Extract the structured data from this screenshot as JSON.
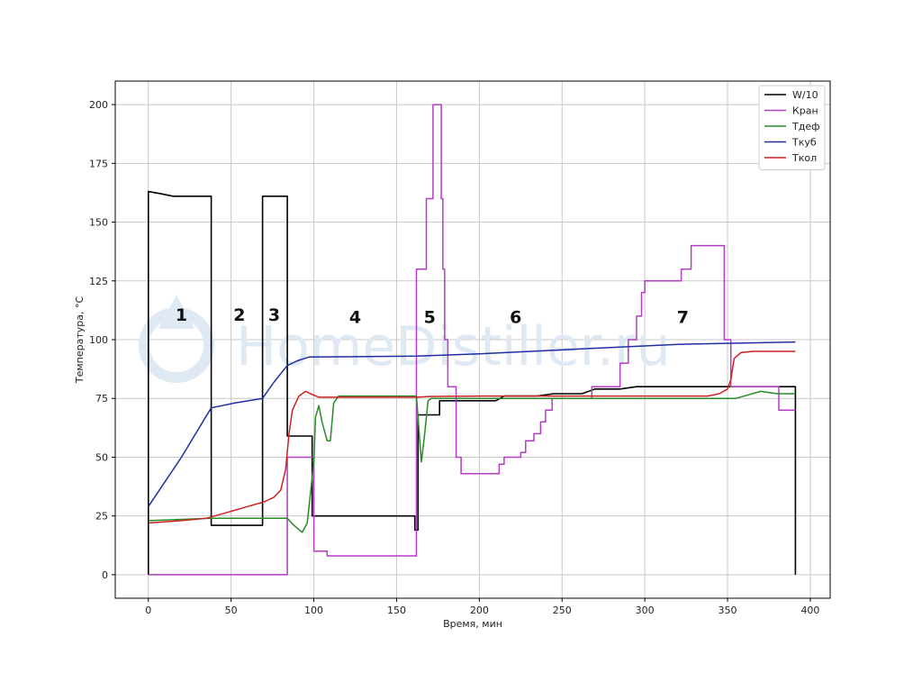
{
  "watermark": "HomeDistiller.ru",
  "chart_data": {
    "type": "line",
    "title": "",
    "xlabel": "Время, мин",
    "ylabel": "Температура, °C",
    "xlim": [
      -20,
      412
    ],
    "ylim": [
      -10,
      210
    ],
    "xticks": [
      0,
      50,
      100,
      150,
      200,
      250,
      300,
      350,
      400
    ],
    "yticks": [
      0,
      25,
      50,
      75,
      100,
      125,
      150,
      175,
      200
    ],
    "grid": true,
    "legend_position": "top-right",
    "phase_labels": [
      {
        "text": "1",
        "x": 20,
        "y": 108
      },
      {
        "text": "2",
        "x": 55,
        "y": 108
      },
      {
        "text": "3",
        "x": 76,
        "y": 108
      },
      {
        "text": "4",
        "x": 125,
        "y": 107
      },
      {
        "text": "5",
        "x": 170,
        "y": 107
      },
      {
        "text": "6",
        "x": 222,
        "y": 107
      },
      {
        "text": "7",
        "x": 323,
        "y": 107
      }
    ],
    "series": [
      {
        "name": "W/10",
        "color": "#000000",
        "points": [
          [
            0,
            0
          ],
          [
            0,
            163
          ],
          [
            8,
            162
          ],
          [
            15,
            161
          ],
          [
            38,
            161
          ],
          [
            38,
            21
          ],
          [
            69,
            21
          ],
          [
            69,
            161
          ],
          [
            84,
            161
          ],
          [
            84,
            59
          ],
          [
            99,
            59
          ],
          [
            99,
            25
          ],
          [
            161,
            25
          ],
          [
            161,
            19
          ],
          [
            163,
            19
          ],
          [
            163,
            68
          ],
          [
            176,
            68
          ],
          [
            176,
            74
          ],
          [
            210,
            74
          ],
          [
            215,
            76
          ],
          [
            235,
            76
          ],
          [
            245,
            77
          ],
          [
            262,
            77
          ],
          [
            270,
            79
          ],
          [
            285,
            79
          ],
          [
            295,
            80
          ],
          [
            391,
            80
          ],
          [
            391,
            0
          ]
        ]
      },
      {
        "name": "Кран",
        "color": "#b43bc5",
        "points": [
          [
            0,
            0
          ],
          [
            84,
            0
          ],
          [
            84,
            50
          ],
          [
            100,
            50
          ],
          [
            100,
            10
          ],
          [
            108,
            10
          ],
          [
            108,
            8
          ],
          [
            162,
            8
          ],
          [
            162,
            130
          ],
          [
            168,
            130
          ],
          [
            168,
            160
          ],
          [
            172,
            160
          ],
          [
            172,
            200
          ],
          [
            177,
            200
          ],
          [
            177,
            160
          ],
          [
            178,
            160
          ],
          [
            178,
            130
          ],
          [
            179,
            130
          ],
          [
            179,
            100
          ],
          [
            181,
            100
          ],
          [
            181,
            80
          ],
          [
            186,
            80
          ],
          [
            186,
            50
          ],
          [
            189,
            50
          ],
          [
            189,
            43
          ],
          [
            212,
            43
          ],
          [
            212,
            47
          ],
          [
            215,
            47
          ],
          [
            215,
            50
          ],
          [
            225,
            50
          ],
          [
            225,
            52
          ],
          [
            228,
            52
          ],
          [
            228,
            57
          ],
          [
            233,
            57
          ],
          [
            233,
            60
          ],
          [
            237,
            60
          ],
          [
            237,
            65
          ],
          [
            240,
            65
          ],
          [
            240,
            70
          ],
          [
            244,
            70
          ],
          [
            244,
            75
          ],
          [
            268,
            75
          ],
          [
            268,
            80
          ],
          [
            285,
            80
          ],
          [
            285,
            90
          ],
          [
            290,
            90
          ],
          [
            290,
            100
          ],
          [
            295,
            100
          ],
          [
            295,
            110
          ],
          [
            298,
            110
          ],
          [
            298,
            120
          ],
          [
            300,
            120
          ],
          [
            300,
            125
          ],
          [
            322,
            125
          ],
          [
            322,
            130
          ],
          [
            328,
            130
          ],
          [
            328,
            140
          ],
          [
            348,
            140
          ],
          [
            348,
            100
          ],
          [
            352,
            100
          ],
          [
            352,
            80
          ],
          [
            381,
            80
          ],
          [
            381,
            70
          ],
          [
            391,
            70
          ]
        ]
      },
      {
        "name": "Tдеф",
        "color": "#2a8a2a",
        "points": [
          [
            0,
            23
          ],
          [
            38,
            24
          ],
          [
            84,
            24
          ],
          [
            88,
            21
          ],
          [
            93,
            18
          ],
          [
            96,
            22
          ],
          [
            100,
            48
          ],
          [
            101,
            67
          ],
          [
            103,
            72
          ],
          [
            105,
            65
          ],
          [
            108,
            57
          ],
          [
            110,
            57
          ],
          [
            112,
            73
          ],
          [
            115,
            76
          ],
          [
            162,
            76
          ],
          [
            165,
            48
          ],
          [
            167,
            60
          ],
          [
            169,
            74
          ],
          [
            171,
            75
          ],
          [
            355,
            75
          ],
          [
            370,
            78
          ],
          [
            380,
            77
          ],
          [
            391,
            77
          ]
        ]
      },
      {
        "name": "Tкуб",
        "color": "#1f2fa3",
        "points": [
          [
            0,
            29
          ],
          [
            20,
            50
          ],
          [
            38,
            71
          ],
          [
            52,
            73
          ],
          [
            69,
            75
          ],
          [
            76,
            82
          ],
          [
            84,
            89
          ],
          [
            90,
            91
          ],
          [
            97,
            92.6
          ],
          [
            162,
            93
          ],
          [
            200,
            94
          ],
          [
            260,
            96
          ],
          [
            320,
            98
          ],
          [
            391,
            99
          ]
        ]
      },
      {
        "name": "Tкол",
        "color": "#cc2222",
        "points": [
          [
            0,
            22
          ],
          [
            20,
            23
          ],
          [
            35,
            24
          ],
          [
            50,
            27
          ],
          [
            60,
            29
          ],
          [
            70,
            31
          ],
          [
            76,
            33
          ],
          [
            80,
            36
          ],
          [
            83,
            45
          ],
          [
            85,
            60
          ],
          [
            87,
            70
          ],
          [
            91,
            76
          ],
          [
            95,
            78
          ],
          [
            98,
            77
          ],
          [
            103,
            75.5
          ],
          [
            162,
            75.5
          ],
          [
            170,
            75.8
          ],
          [
            200,
            76
          ],
          [
            250,
            76
          ],
          [
            300,
            76
          ],
          [
            338,
            76
          ],
          [
            345,
            77
          ],
          [
            350,
            79
          ],
          [
            352,
            83
          ],
          [
            354,
            92
          ],
          [
            358,
            94.5
          ],
          [
            365,
            95
          ],
          [
            391,
            95
          ]
        ]
      }
    ]
  }
}
